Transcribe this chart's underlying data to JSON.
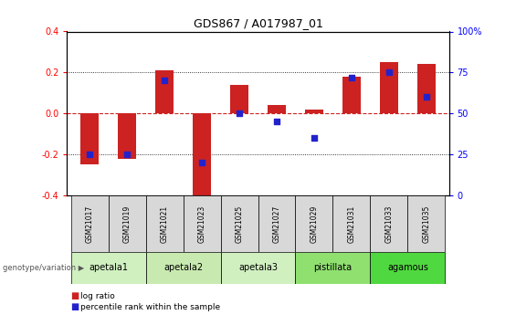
{
  "title": "GDS867 / A017987_01",
  "samples": [
    "GSM21017",
    "GSM21019",
    "GSM21021",
    "GSM21023",
    "GSM21025",
    "GSM21027",
    "GSM21029",
    "GSM21031",
    "GSM21033",
    "GSM21035"
  ],
  "log_ratio": [
    -0.25,
    -0.22,
    0.21,
    -0.42,
    0.14,
    0.04,
    0.02,
    0.18,
    0.25,
    0.24
  ],
  "percentile": [
    25,
    25,
    70,
    20,
    50,
    45,
    35,
    72,
    75,
    60
  ],
  "ylim_left": [
    -0.4,
    0.4
  ],
  "ylim_right": [
    0,
    100
  ],
  "yticks_left": [
    -0.4,
    -0.2,
    0.0,
    0.2,
    0.4
  ],
  "yticks_right": [
    0,
    25,
    50,
    75,
    100
  ],
  "bar_color": "#cc2222",
  "dot_color": "#2222cc",
  "zero_line_color": "#cc2222",
  "grid_color": "#000000",
  "groups": [
    {
      "label": "apetala1",
      "indices": [
        0,
        1
      ],
      "color": "#d0f0c0"
    },
    {
      "label": "apetala2",
      "indices": [
        2,
        3
      ],
      "color": "#c8eab0"
    },
    {
      "label": "apetala3",
      "indices": [
        4,
        5
      ],
      "color": "#d0f0c0"
    },
    {
      "label": "pistillata",
      "indices": [
        6,
        7
      ],
      "color": "#90e070"
    },
    {
      "label": "agamous",
      "indices": [
        8,
        9
      ],
      "color": "#50d840"
    }
  ],
  "group_label_text": "genotype/variation",
  "legend_log_ratio": "log ratio",
  "legend_percentile": "percentile rank within the sample",
  "bar_width": 0.5,
  "sample_label_color": "#d8d8d8"
}
